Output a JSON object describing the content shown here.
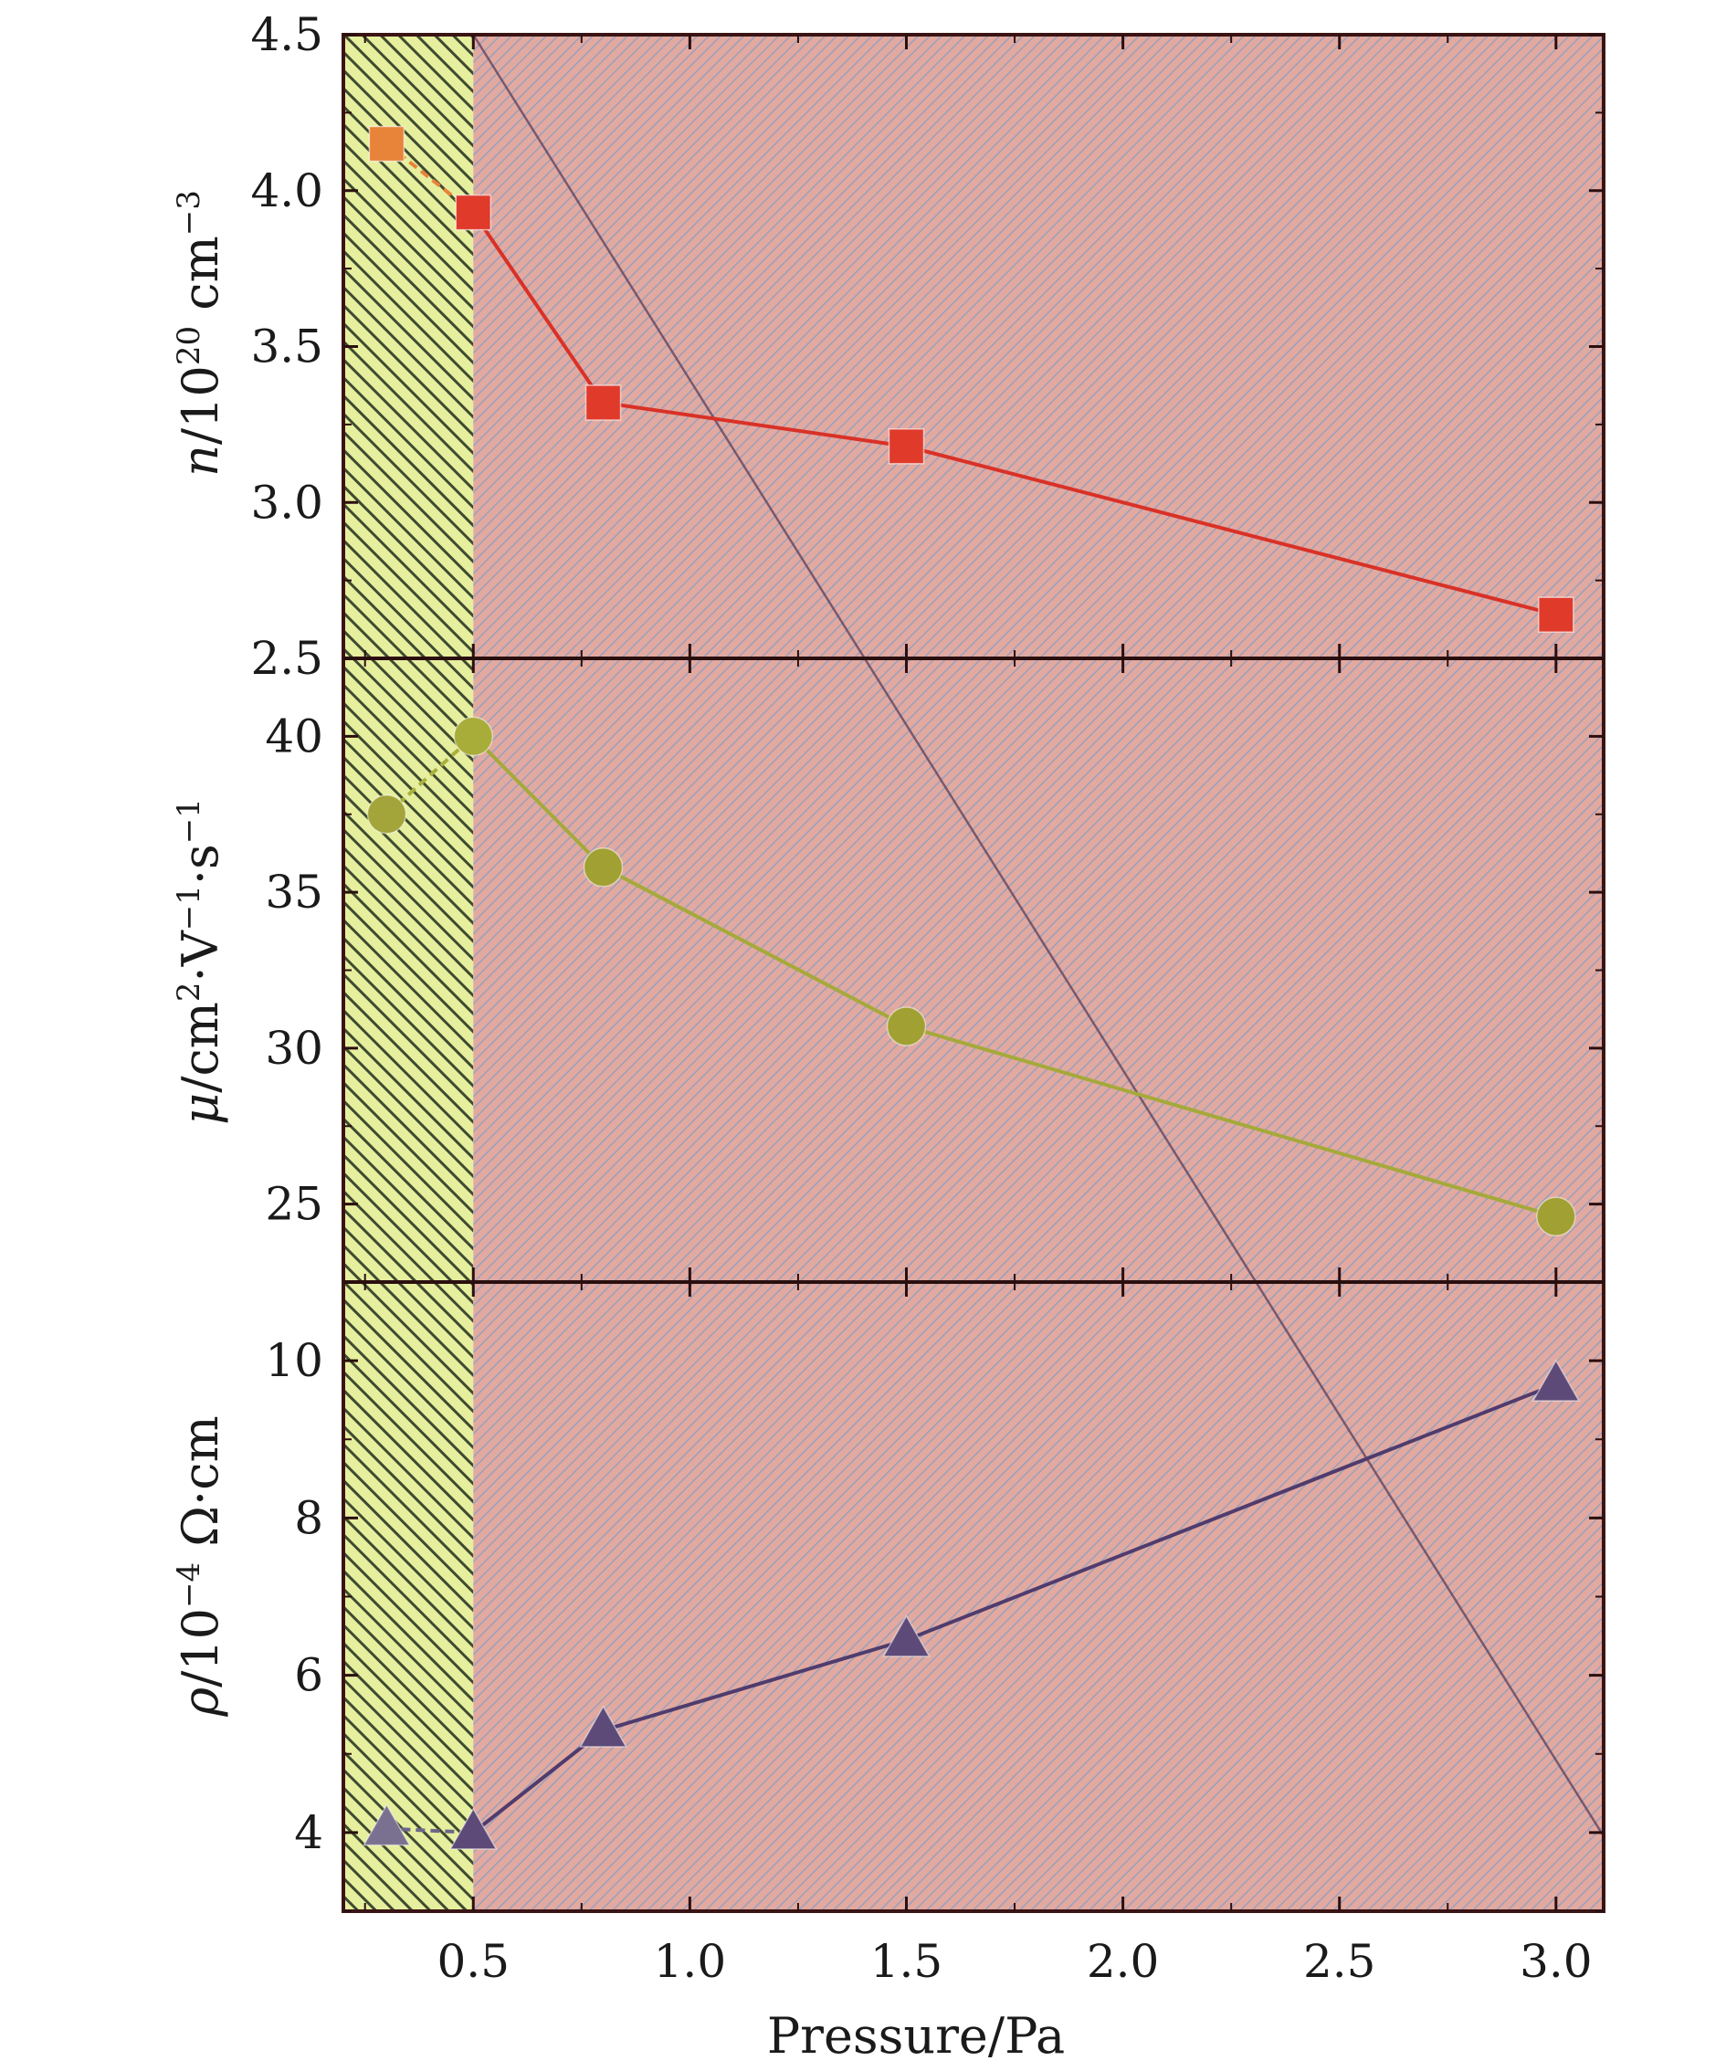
{
  "chart_data": {
    "type": "line",
    "x_axis": {
      "label": "Pressure/Pa",
      "range": [
        0.2,
        3.11
      ],
      "ticks": [
        "0.5",
        "1.0",
        "1.5",
        "2.0",
        "2.5",
        "3.0"
      ],
      "tick_values": [
        0.5,
        1.0,
        1.5,
        2.0,
        2.5,
        3.0
      ]
    },
    "shaded_regions": [
      {
        "from": 0.2,
        "to": 0.5,
        "color": "#e6ef9e",
        "hatch": "#3f4a30"
      },
      {
        "from": 0.5,
        "to": 3.11,
        "color": "#e1a9a0",
        "hatch": "#9aa0bb"
      }
    ],
    "decor_line": {
      "x": [
        0.5,
        2.0,
        3.11
      ],
      "panel_y": [
        0.0,
        1.64,
        2.88
      ],
      "color": "#5a3f5c"
    },
    "panels": [
      {
        "ylabel": "n/10^20 cm^-3",
        "ylabel_parts": {
          "sym": "n",
          "base": "/10",
          "exp": "20",
          "unit": " cm",
          "unit_exp": "−3"
        },
        "ylim": [
          2.5,
          4.5
        ],
        "yticks": [
          "2.5",
          "3.0",
          "3.5",
          "4.0",
          "4.5"
        ],
        "ytick_values": [
          2.5,
          3.0,
          3.5,
          4.0,
          4.5
        ],
        "marker": "square",
        "series": [
          {
            "x": [
              0.3,
              0.5,
              0.8,
              1.5,
              3.0
            ],
            "y": [
              4.15,
              3.93,
              3.32,
              3.18,
              2.64
            ],
            "colors": [
              "#e8833a",
              "#e03a2b",
              "#e03a2b",
              "#e03a2b",
              "#e03a2b"
            ],
            "line_colors": [
              "#e8833a",
              "#d93127",
              "#d93127",
              "#d93127"
            ]
          }
        ]
      },
      {
        "ylabel": "μ/cm2·V−1·s−1",
        "ylabel_parts": {
          "sym": "μ",
          "base": "/cm",
          "exp": "2",
          "mid": "·V",
          "mid_exp": "−1",
          "unit": "·s",
          "unit_exp": "−1"
        },
        "ylim": [
          22.5,
          42.5
        ],
        "yticks": [
          "25",
          "30",
          "35",
          "40"
        ],
        "ytick_values": [
          25,
          30,
          35,
          40
        ],
        "marker": "circle",
        "series": [
          {
            "x": [
              0.3,
              0.5,
              0.8,
              1.5,
              3.0
            ],
            "y": [
              37.5,
              40.0,
              35.8,
              30.7,
              24.6
            ],
            "colors": [
              "#a3a53a",
              "#a8ad3a",
              "#a0a033",
              "#a0a033",
              "#a0a033"
            ],
            "line_colors": [
              "#aab03c",
              "#a5a93a",
              "#a5a93a",
              "#a5a93a"
            ]
          }
        ]
      },
      {
        "ylabel": "ρ/10−4 Ω·cm",
        "ylabel_parts": {
          "sym": "ρ",
          "base": "/10",
          "exp": "−4",
          "unit": " Ω·cm"
        },
        "ylim": [
          3,
          11
        ],
        "yticks": [
          "4",
          "6",
          "8",
          "10"
        ],
        "ytick_values": [
          4,
          6,
          8,
          10
        ],
        "marker": "triangle",
        "series": [
          {
            "x": [
              0.3,
              0.5,
              0.8,
              1.5,
              3.0
            ],
            "y": [
              4.05,
              4.0,
              5.3,
              6.45,
              9.7
            ],
            "colors": [
              "#7a7090",
              "#5d4a78",
              "#5d4a78",
              "#5d4a78",
              "#5d4a78"
            ],
            "line_colors": [
              "#6e6688",
              "#4f3c6e",
              "#4f3c6e",
              "#4f3c6e"
            ]
          }
        ]
      }
    ],
    "colors": {
      "frame": "#3a1414",
      "divider": "#2a0f0f"
    }
  }
}
